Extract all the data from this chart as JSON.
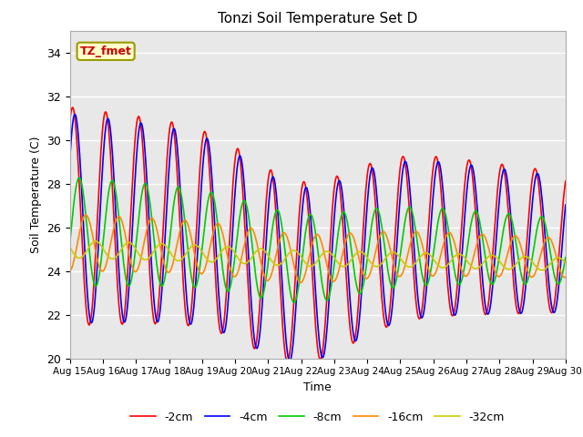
{
  "title": "Tonzi Soil Temperature Set D",
  "xlabel": "Time",
  "ylabel": "Soil Temperature (C)",
  "ylim": [
    20,
    35
  ],
  "xlim_days": [
    0,
    15
  ],
  "x_tick_labels": [
    "Aug 15",
    "Aug 16",
    "Aug 17",
    "Aug 18",
    "Aug 19",
    "Aug 20",
    "Aug 21",
    "Aug 22",
    "Aug 23",
    "Aug 24",
    "Aug 25",
    "Aug 26",
    "Aug 27",
    "Aug 28",
    "Aug 29",
    "Aug 30"
  ],
  "legend_labels": [
    "-2cm",
    "-4cm",
    "-8cm",
    "-16cm",
    "-32cm"
  ],
  "line_colors": [
    "#ff0000",
    "#0000ff",
    "#00cc00",
    "#ff8800",
    "#cccc00"
  ],
  "annotation_text": "TZ_fmet",
  "annotation_bg": "#ffffcc",
  "annotation_border": "#999900",
  "bg_color": "#e8e8e8",
  "n_points": 721,
  "days": 15,
  "figsize": [
    6.4,
    4.8
  ],
  "dpi": 100
}
